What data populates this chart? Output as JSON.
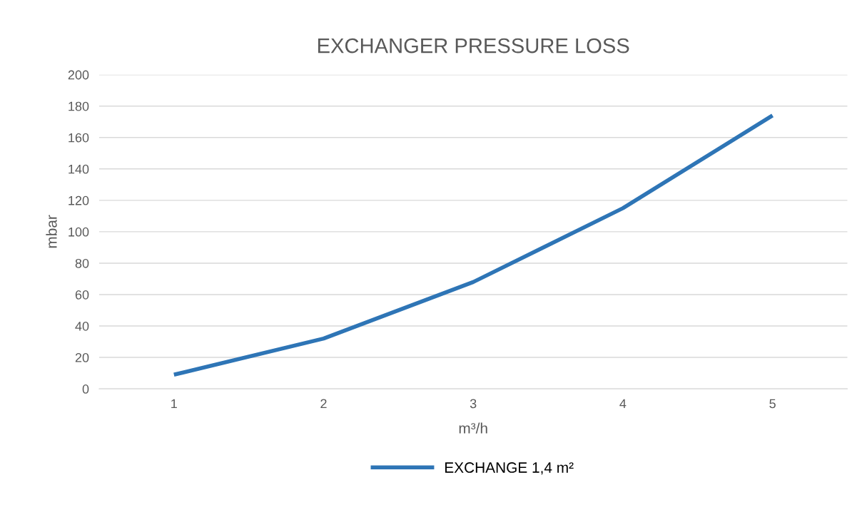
{
  "chart_data": {
    "type": "line",
    "title": "EXCHANGER PRESSURE LOSS",
    "xlabel": "m³/h",
    "ylabel": "mbar",
    "categories": [
      "1",
      "2",
      "3",
      "4",
      "5"
    ],
    "series": [
      {
        "name": "EXCHANGE 1,4 m²",
        "color": "#2e75b6",
        "values": [
          9,
          32,
          68,
          115,
          174
        ]
      }
    ],
    "ylim": [
      0,
      200
    ],
    "yticks": [
      0,
      20,
      40,
      60,
      80,
      100,
      120,
      140,
      160,
      180,
      200
    ],
    "grid": "y",
    "legend": "bottom",
    "marker": "none",
    "line_style": "solid"
  }
}
